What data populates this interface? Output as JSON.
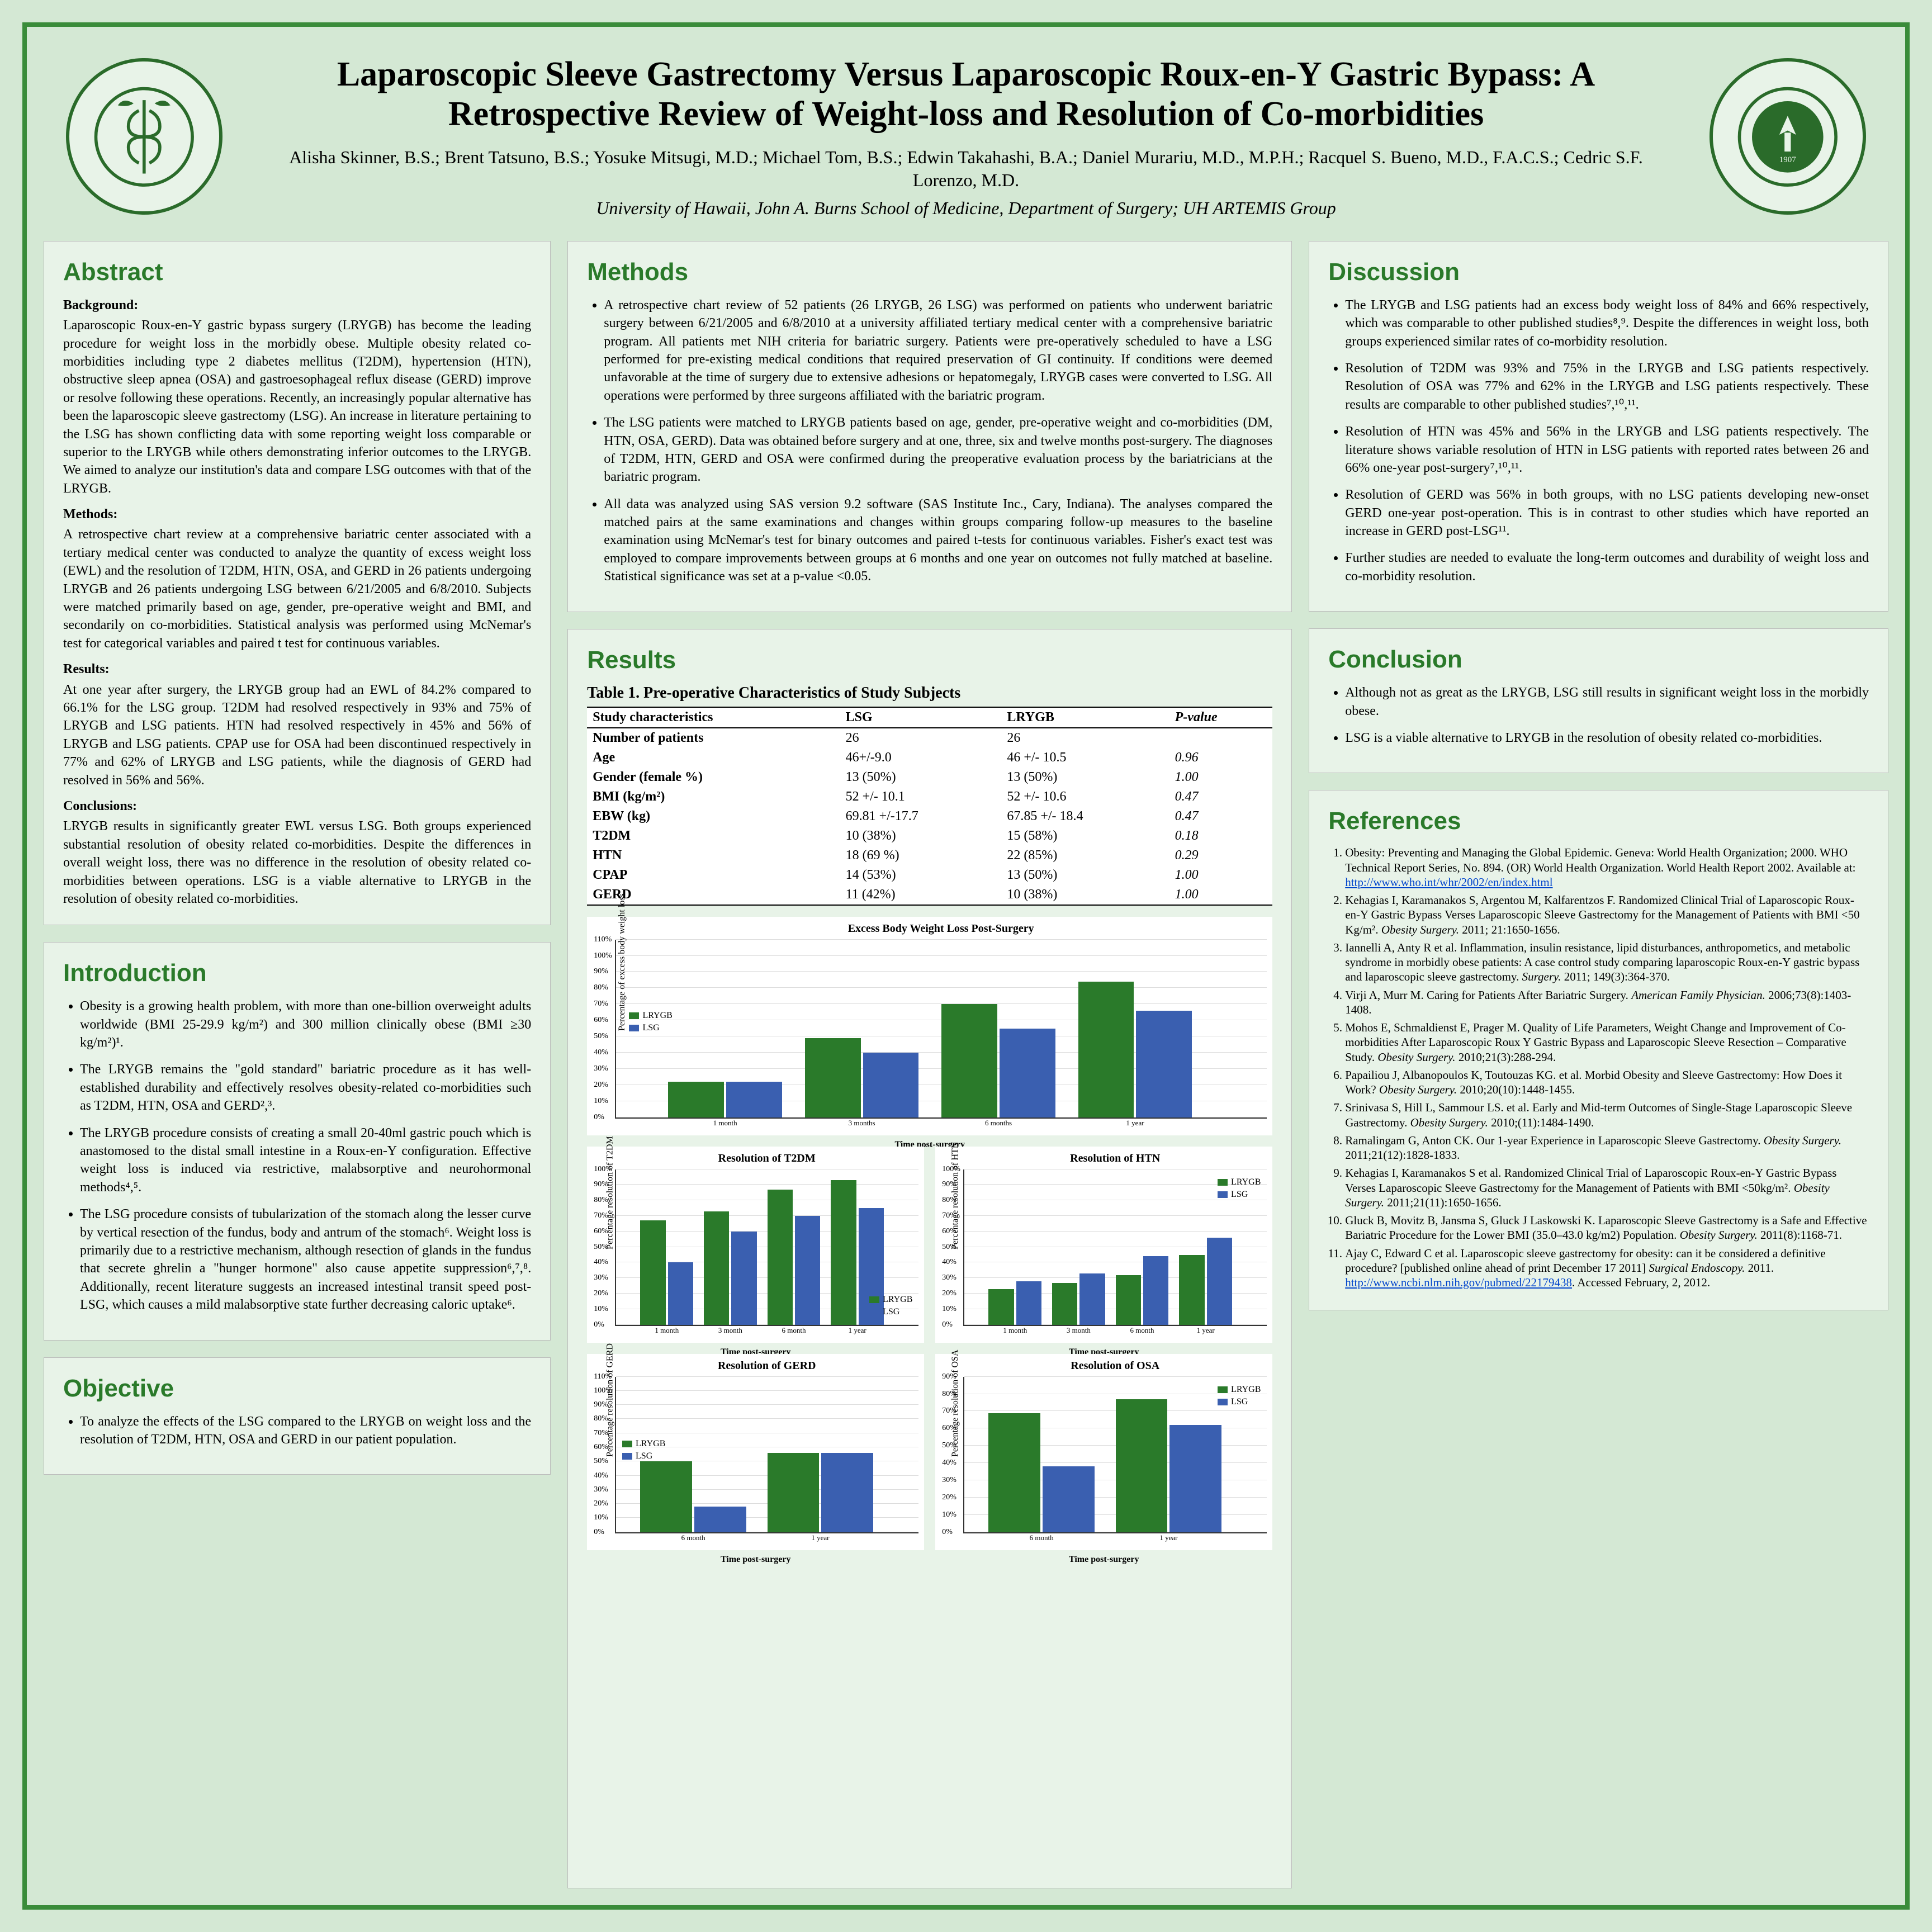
{
  "header": {
    "title": "Laparoscopic Sleeve Gastrectomy Versus Laparoscopic Roux-en-Y Gastric Bypass: A Retrospective Review of Weight-loss and Resolution of Co-morbidities",
    "authors": "Alisha Skinner, B.S.; Brent Tatsuno, B.S.; Yosuke Mitsugi, M.D.; Michael Tom, B.S.; Edwin Takahashi, B.A.; Daniel Murariu, M.D., M.P.H.; Racquel S. Bueno, M.D., F.A.C.S.; Cedric S.F. Lorenzo, M.D.",
    "affil": "University of Hawaii, John A. Burns School of Medicine, Department of Surgery; UH ARTEMIS Group",
    "logo_left_alt": "JABSOM seal",
    "logo_right_alt": "University of Hawaii seal"
  },
  "abstract": {
    "heading": "Abstract",
    "background_h": "Background:",
    "background": "Laparoscopic Roux-en-Y gastric bypass surgery (LRYGB) has become the leading procedure for weight loss in the morbidly obese. Multiple obesity related co-morbidities including type 2 diabetes mellitus (T2DM), hypertension (HTN), obstructive sleep apnea (OSA) and gastroesophageal reflux disease (GERD) improve or resolve following these operations. Recently, an increasingly popular alternative has been the laparoscopic sleeve gastrectomy (LSG). An increase in literature pertaining to the LSG has shown conflicting data with some reporting weight loss comparable or superior to the LRYGB while others demonstrating inferior outcomes to the LRYGB. We aimed to analyze our institution's data and compare LSG outcomes with that of the LRYGB.",
    "methods_h": "Methods:",
    "methods": "A retrospective chart review at a comprehensive bariatric center associated with a tertiary medical center was conducted to analyze the quantity of excess weight loss (EWL) and the resolution of T2DM, HTN, OSA, and GERD in 26 patients undergoing LRYGB and 26 patients undergoing LSG between 6/21/2005 and 6/8/2010. Subjects were matched primarily based on age, gender, pre-operative weight and BMI, and secondarily on co-morbidities. Statistical analysis was performed using McNemar's test for categorical variables and paired t test for continuous variables.",
    "results_h": "Results:",
    "results": "At one year after surgery, the LRYGB group had an EWL of 84.2% compared to 66.1% for the LSG group. T2DM had resolved respectively in 93% and 75% of LRYGB and LSG patients. HTN had resolved respectively in 45% and 56% of LRYGB and LSG patients. CPAP use for OSA had been discontinued respectively in 77% and 62% of LRYGB and LSG patients, while the diagnosis of GERD had resolved in 56% and 56%.",
    "conclusions_h": "Conclusions:",
    "conclusions": "LRYGB results in significantly greater EWL versus LSG. Both groups experienced substantial resolution of obesity related co-morbidities. Despite the differences in overall weight loss, there was no difference in the resolution of obesity related co-morbidities between operations. LSG is a viable alternative to LRYGB in the resolution of obesity related co-morbidities."
  },
  "introduction": {
    "heading": "Introduction",
    "items": [
      "Obesity is a growing health problem, with more than one-billion overweight adults worldwide (BMI 25-29.9 kg/m²) and 300 million clinically obese (BMI ≥30 kg/m²)¹.",
      "The LRYGB remains the \"gold standard\" bariatric procedure as it has well-established durability and effectively resolves obesity-related co-morbidities such as T2DM, HTN, OSA and GERD²,³.",
      "The LRYGB procedure consists of creating a small 20-40ml gastric pouch which is anastomosed to the distal small intestine in a Roux-en-Y configuration. Effective weight loss is induced via restrictive, malabsorptive and neurohormonal methods⁴,⁵.",
      "The LSG procedure consists of tubularization of the stomach along the lesser curve by vertical resection of the fundus, body and antrum of the stomach⁶. Weight loss is primarily due to a restrictive mechanism, although resection of glands in the fundus that secrete ghrelin a \"hunger hormone\" also cause appetite suppression⁶,⁷,⁸. Additionally, recent literature suggests an increased intestinal transit speed post-LSG, which causes a mild malabsorptive state further decreasing caloric uptake⁶."
    ]
  },
  "objective": {
    "heading": "Objective",
    "items": [
      "To analyze the effects of the LSG compared to the LRYGB on weight loss and the resolution of T2DM, HTN, OSA and GERD in our patient population."
    ]
  },
  "methods": {
    "heading": "Methods",
    "items": [
      "A retrospective chart review of 52 patients (26 LRYGB, 26 LSG) was performed on patients who underwent bariatric surgery between 6/21/2005 and 6/8/2010 at a university affiliated tertiary medical center with a comprehensive bariatric program. All patients met NIH criteria for bariatric surgery. Patients were pre-operatively scheduled to have a LSG performed for pre-existing medical conditions that required preservation of GI continuity. If conditions were deemed unfavorable at the time of surgery due to extensive adhesions or hepatomegaly, LRYGB cases were converted to LSG. All operations were performed by three surgeons affiliated with the bariatric program.",
      "The LSG patients were matched to LRYGB patients based on age, gender, pre-operative weight and co-morbidities (DM, HTN, OSA, GERD). Data was obtained before surgery and at one, three, six and twelve months post-surgery. The diagnoses of T2DM, HTN, GERD and OSA were confirmed during the preoperative evaluation process by the bariatricians at the bariatric program.",
      "All data was analyzed using SAS version 9.2 software (SAS Institute Inc., Cary, Indiana). The analyses compared the matched pairs at the same examinations and changes within groups comparing follow-up measures to the baseline examination using McNemar's test for binary outcomes and paired t-tests for continuous variables. Fisher's exact test was employed to compare improvements between groups at 6 months and one year on outcomes not fully matched at baseline. Statistical significance was set at a p-value <0.05."
    ]
  },
  "results": {
    "heading": "Results",
    "table_title": "Table 1. Pre-operative Characteristics of Study Subjects",
    "table_headers": [
      "Study characteristics",
      "LSG",
      "LRYGB",
      "P-value"
    ],
    "table_rows": [
      [
        "Number of patients",
        "26",
        "26",
        ""
      ],
      [
        "Age",
        "46+/-9.0",
        "46 +/- 10.5",
        "0.96"
      ],
      [
        "Gender (female %)",
        "13 (50%)",
        "13 (50%)",
        "1.00"
      ],
      [
        "BMI (kg/m²)",
        "52 +/- 10.1",
        "52 +/- 10.6",
        "0.47"
      ],
      [
        "EBW (kg)",
        "69.81 +/-17.7",
        "67.85 +/- 18.4",
        "0.47"
      ],
      [
        "T2DM",
        "10 (38%)",
        "15 (58%)",
        "0.18"
      ],
      [
        "HTN",
        "18 (69 %)",
        "22 (85%)",
        "0.29"
      ],
      [
        "CPAP",
        "14 (53%)",
        "13 (50%)",
        "1.00"
      ],
      [
        "GERD",
        "11 (42%)",
        "10 (38%)",
        "1.00"
      ]
    ]
  },
  "charts": {
    "colors": {
      "lrygb": "#2a7a2a",
      "lsg": "#3a5fb0",
      "grid": "#dddddd",
      "axis": "#333333",
      "bg": "#ffffff"
    },
    "legend": [
      "LRYGB",
      "LSG"
    ],
    "ewl": {
      "title": "Excess Body Weight Loss Post-Surgery",
      "ylabel": "Percentage of excess body weight loss",
      "xlabel": "Time post-surgery",
      "categories": [
        "1 month",
        "3 months",
        "6 months",
        "1 year"
      ],
      "lrygb": [
        22,
        49,
        70,
        84
      ],
      "lsg": [
        22,
        40,
        55,
        66
      ],
      "ylim": [
        0,
        110
      ],
      "ytick_step": 10
    },
    "t2dm": {
      "title": "Resolution of T2DM",
      "ylabel": "Percentage resolution of T2DM",
      "xlabel": "Time post-surgery",
      "categories": [
        "1 month",
        "3 month",
        "6 month",
        "1 year"
      ],
      "lrygb": [
        67,
        73,
        87,
        93
      ],
      "lsg": [
        40,
        60,
        70,
        75
      ],
      "ylim": [
        0,
        100
      ],
      "ytick_step": 10
    },
    "htn": {
      "title": "Resolution of HTN",
      "ylabel": "Percentage resolution of HTN",
      "xlabel": "Time post-surgery",
      "categories": [
        "1 month",
        "3 month",
        "6 month",
        "1 year"
      ],
      "lrygb": [
        23,
        27,
        32,
        45
      ],
      "lsg": [
        28,
        33,
        44,
        56
      ],
      "ylim": [
        0,
        100
      ],
      "ytick_step": 10
    },
    "gerd": {
      "title": "Resolution of GERD",
      "ylabel": "Percentage resolution of GERD",
      "xlabel": "Time post-surgery",
      "categories": [
        "6 month",
        "1 year"
      ],
      "lrygb": [
        50,
        56
      ],
      "lsg": [
        18,
        56
      ],
      "ylim": [
        0,
        110
      ],
      "ytick_step": 10
    },
    "osa": {
      "title": "Resolution of OSA",
      "ylabel": "Percentage resolution of OSA",
      "xlabel": "Time post-surgery",
      "categories": [
        "6 month",
        "1 year"
      ],
      "lrygb": [
        69,
        77
      ],
      "lsg": [
        38,
        62
      ],
      "ylim": [
        0,
        90
      ],
      "ytick_step": 10
    }
  },
  "discussion": {
    "heading": "Discussion",
    "items": [
      "The LRYGB and LSG patients had an excess body weight loss of 84% and 66% respectively, which was comparable to other published studies⁸,⁹. Despite the differences in weight loss, both groups experienced similar rates of co-morbidity resolution.",
      "Resolution of T2DM was 93% and 75% in the LRYGB and LSG patients respectively. Resolution of OSA was 77% and 62% in the LRYGB and LSG patients respectively. These results are comparable to other published studies⁷,¹⁰,¹¹.",
      "Resolution of HTN was 45% and 56% in the LRYGB and LSG patients respectively. The literature shows variable resolution of HTN in LSG patients with reported rates between 26 and 66% one-year post-surgery⁷,¹⁰,¹¹.",
      "Resolution of GERD was 56% in both groups, with no LSG patients developing new-onset GERD one-year post-operation. This is in contrast to other studies which have reported an increase in GERD post-LSG¹¹.",
      "Further studies are needed to evaluate the long-term outcomes and durability of weight loss and co-morbidity resolution."
    ]
  },
  "conclusion": {
    "heading": "Conclusion",
    "items": [
      "Although not as great as the LRYGB, LSG still results in significant weight loss in the morbidly obese.",
      "LSG is a viable alternative to LRYGB in the resolution of obesity related co-morbidities."
    ]
  },
  "references": {
    "heading": "References",
    "items": [
      "Obesity: Preventing and Managing the Global Epidemic. Geneva: World Health Organization; 2000. WHO Technical Report Series, No. 894. (OR) World Health Organization. World Health Report 2002. Available at: <a href='#'>http://www.who.int/whr/2002/en/index.html</a>",
      "Kehagias I, Karamanakos S, Argentou M, Kalfarentzos F. Randomized Clinical Trial of Laparoscopic Roux-en-Y Gastric Bypass Verses Laparoscopic Sleeve Gastrectomy for the Management of Patients with BMI &lt;50 Kg/m². <i>Obesity Surgery.</i> 2011; 21:1650-1656.",
      "Iannelli A, Anty R et al. Inflammation, insulin resistance, lipid disturbances, anthropometics, and metabolic syndrome in morbidly obese patients: A case control study comparing laparoscopic Roux-en-Y gastric bypass and laparoscopic sleeve gastrectomy. <i>Surgery.</i> 2011; 149(3):364-370.",
      "Virji A, Murr M. Caring for Patients After Bariatric Surgery. <i>American Family Physician.</i> 2006;73(8):1403-1408.",
      "Mohos E, Schmaldienst E, Prager M. Quality of Life Parameters, Weight Change and Improvement of Co-morbidities After Laparoscopic Roux Y Gastric Bypass and Laparoscopic Sleeve Resection – Comparative Study. <i>Obesity Surgery.</i> 2010;21(3):288-294.",
      "Papailiou J, Albanopoulos K, Toutouzas KG. et al. Morbid Obesity and Sleeve Gastrectomy: How Does it Work? <i>Obesity Surgery.</i> 2010;20(10):1448-1455.",
      "Srinivasa S, Hill L, Sammour LS. et al. Early and Mid-term Outcomes of Single-Stage Laparoscopic Sleeve Gastrectomy. <i>Obesity Surgery.</i> 2010;(11):1484-1490.",
      "Ramalingam G, Anton CK. Our 1-year Experience in Laparoscopic Sleeve Gastrectomy. <i>Obesity Surgery.</i> 2011;21(12):1828-1833.",
      "Kehagias I, Karamanakos S et al. Randomized Clinical Trial of Laparoscopic Roux-en-Y Gastric Bypass Verses Laparoscopic Sleeve Gastrectomy for the Management of Patients with BMI &lt;50kg/m². <i>Obesity Surgery.</i> 2011;21(11):1650-1656.",
      "Gluck B, Movitz B, Jansma S, Gluck J Laskowski K. Laparoscopic Sleeve Gastrectomy is a Safe and Effective Bariatric Procedure for the Lower BMI (35.0–43.0 kg/m2) Population. <i>Obesity Surgery.</i> 2011(8):1168-71.",
      "Ajay C, Edward C et al. Laparoscopic sleeve gastrectomy for obesity: can it be considered a definitive procedure? [published online ahead of print December 17 2011] <i>Surgical Endoscopy.</i> 2011. <a href='#'>http://www.ncbi.nlm.nih.gov/pubmed/22179438</a>. Accessed February, 2, 2012."
    ]
  }
}
